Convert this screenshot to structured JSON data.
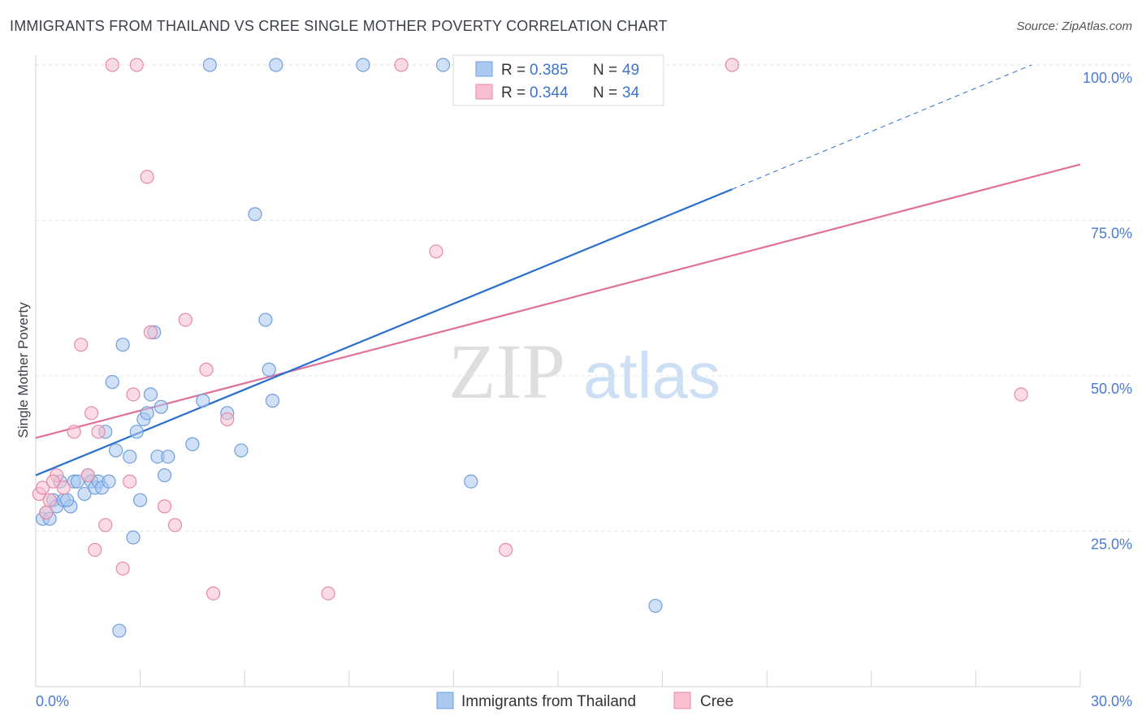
{
  "header": {
    "title": "IMMIGRANTS FROM THAILAND VS CREE SINGLE MOTHER POVERTY CORRELATION CHART",
    "source": "Source: ZipAtlas.com"
  },
  "watermark": {
    "zip": "ZIP",
    "atlas": "atlas"
  },
  "colors": {
    "blue_fill": "#aac8f0",
    "blue_stroke": "#6f9fdc",
    "blue_line": "#2a6fce",
    "pink_fill": "#f7bfd0",
    "pink_stroke": "#e58aa8",
    "pink_line": "#e0709a"
  },
  "chart_data": {
    "type": "scatter",
    "title": "IMMIGRANTS FROM THAILAND VS CREE SINGLE MOTHER POVERTY CORRELATION CHART",
    "xlabel": "",
    "ylabel": "Single Mother Poverty",
    "xlim": [
      0,
      30
    ],
    "ylim": [
      0,
      100
    ],
    "x_tick_labels": [
      "0.0%",
      "30.0%"
    ],
    "y_ticks": [
      25,
      50,
      75,
      100
    ],
    "y_tick_labels": [
      "25.0%",
      "50.0%",
      "75.0%",
      "100.0%"
    ],
    "grid": true,
    "legend_position": "top-center",
    "stats": [
      {
        "r_label": "R =",
        "r": "0.385",
        "n_label": "N =",
        "n": "49"
      },
      {
        "r_label": "R =",
        "r": "0.344",
        "n_label": "N =",
        "n": "34"
      }
    ],
    "series": [
      {
        "name": "Immigrants from Thailand",
        "color": "#aac8f0",
        "trend": {
          "x0": 0,
          "y0": 34,
          "x1": 20,
          "y1": 80,
          "dash_to_x": 28.6,
          "dash_to_y": 100
        },
        "points": [
          [
            0.2,
            27
          ],
          [
            0.3,
            28
          ],
          [
            0.4,
            27
          ],
          [
            0.5,
            30
          ],
          [
            0.6,
            29
          ],
          [
            0.7,
            33
          ],
          [
            0.8,
            30
          ],
          [
            1.0,
            29
          ],
          [
            1.1,
            33
          ],
          [
            1.2,
            33
          ],
          [
            1.4,
            31
          ],
          [
            1.5,
            34
          ],
          [
            1.6,
            33
          ],
          [
            1.7,
            32
          ],
          [
            1.8,
            33
          ],
          [
            1.9,
            32
          ],
          [
            2.0,
            41
          ],
          [
            2.1,
            33
          ],
          [
            2.2,
            49
          ],
          [
            2.3,
            38
          ],
          [
            2.5,
            55
          ],
          [
            2.7,
            37
          ],
          [
            2.8,
            24
          ],
          [
            2.9,
            41
          ],
          [
            3.0,
            30
          ],
          [
            3.1,
            43
          ],
          [
            3.2,
            44
          ],
          [
            3.3,
            47
          ],
          [
            3.4,
            57
          ],
          [
            3.5,
            37
          ],
          [
            3.6,
            45
          ],
          [
            3.7,
            34
          ],
          [
            3.8,
            37
          ],
          [
            4.5,
            39
          ],
          [
            4.8,
            46
          ],
          [
            5.5,
            44
          ],
          [
            5.9,
            38
          ],
          [
            6.3,
            76
          ],
          [
            6.6,
            59
          ],
          [
            6.7,
            51
          ],
          [
            6.8,
            46
          ],
          [
            2.4,
            9
          ],
          [
            12.5,
            33
          ],
          [
            17.8,
            13
          ],
          [
            5.0,
            100
          ],
          [
            6.9,
            100
          ],
          [
            9.4,
            100
          ],
          [
            11.7,
            100
          ],
          [
            0.9,
            30
          ]
        ]
      },
      {
        "name": "Cree",
        "color": "#f7bfd0",
        "trend": {
          "x0": 0,
          "y0": 40,
          "x1": 30,
          "y1": 84
        },
        "points": [
          [
            0.1,
            31
          ],
          [
            0.2,
            32
          ],
          [
            0.3,
            28
          ],
          [
            0.4,
            30
          ],
          [
            0.6,
            34
          ],
          [
            0.8,
            32
          ],
          [
            1.1,
            41
          ],
          [
            1.3,
            55
          ],
          [
            1.5,
            34
          ],
          [
            1.6,
            44
          ],
          [
            1.7,
            22
          ],
          [
            1.8,
            41
          ],
          [
            2.0,
            26
          ],
          [
            2.5,
            19
          ],
          [
            2.7,
            33
          ],
          [
            2.8,
            47
          ],
          [
            3.2,
            82
          ],
          [
            3.3,
            57
          ],
          [
            3.7,
            29
          ],
          [
            4.0,
            26
          ],
          [
            4.3,
            59
          ],
          [
            4.9,
            51
          ],
          [
            5.1,
            15
          ],
          [
            5.5,
            43
          ],
          [
            8.4,
            15
          ],
          [
            11.5,
            70
          ],
          [
            13.5,
            22
          ],
          [
            28.3,
            47
          ],
          [
            2.2,
            100
          ],
          [
            2.9,
            100
          ],
          [
            10.5,
            100
          ],
          [
            14.2,
            100
          ],
          [
            20.0,
            100
          ],
          [
            0.5,
            33
          ]
        ]
      }
    ]
  }
}
